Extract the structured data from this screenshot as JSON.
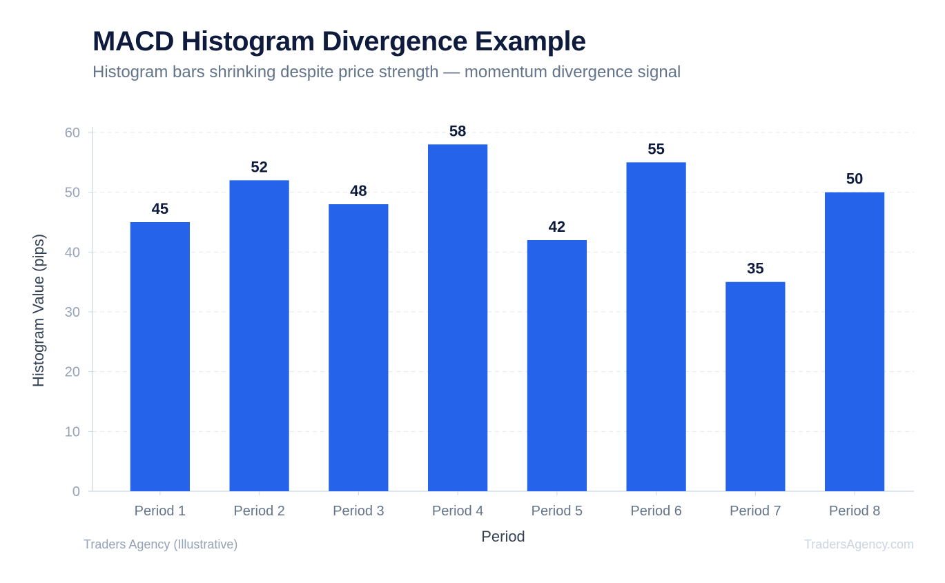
{
  "title": "MACD Histogram Divergence Example",
  "subtitle": "Histogram bars shrinking despite price strength — momentum divergence signal",
  "footer": {
    "source": "Traders Agency (Illustrative)",
    "site": "TradersAgency.com"
  },
  "colors": {
    "bar": "#2563eb",
    "title": "#0f1b3d",
    "axis_text": "#94a3b8",
    "tick_text": "#64748b",
    "grid": "#e5e7eb"
  },
  "chart_data": {
    "type": "bar",
    "categories": [
      "Period 1",
      "Period 2",
      "Period 3",
      "Period 4",
      "Period 5",
      "Period 6",
      "Period 7",
      "Period 8"
    ],
    "values": [
      45,
      52,
      48,
      58,
      42,
      55,
      35,
      50
    ],
    "xlabel": "Period",
    "ylabel": "Histogram Value (pips)",
    "ylim": [
      0,
      60
    ],
    "yticks": [
      0,
      10,
      20,
      30,
      40,
      50,
      60
    ],
    "grid": true,
    "data_labels": true
  }
}
